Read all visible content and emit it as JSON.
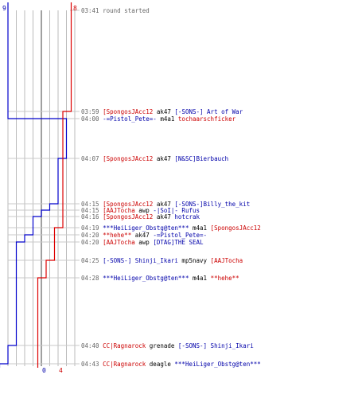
{
  "colors": {
    "blue_team": "#0000cc",
    "red_team": "#dd0000",
    "timestamp": "#666666",
    "grid": "#bbbbbb",
    "center": "#777777"
  },
  "counts": {
    "blue_start": "9",
    "red_start": "8",
    "blue_end": "0",
    "red_end": "4"
  },
  "events": [
    {
      "time": "03:41",
      "parts": [
        {
          "text": "round started",
          "team": "gray"
        }
      ]
    },
    {
      "time": "03:59",
      "parts": [
        {
          "text": "[SpongosJAcc12",
          "team": "red"
        },
        {
          "text": " ak47 ",
          "team": "plain"
        },
        {
          "text": "[-SONS-] Art of War",
          "team": "blue"
        }
      ]
    },
    {
      "time": "04:00",
      "parts": [
        {
          "text": "-=Pistol_Pete=-",
          "team": "blue"
        },
        {
          "text": " m4a1 ",
          "team": "plain"
        },
        {
          "text": "tochaarschficker",
          "team": "red"
        }
      ]
    },
    {
      "time": "04:07",
      "parts": [
        {
          "text": "[SpongosJAcc12",
          "team": "red"
        },
        {
          "text": " ak47 ",
          "team": "plain"
        },
        {
          "text": "[N&SC]Bierbauch",
          "team": "blue"
        }
      ]
    },
    {
      "time": "04:15",
      "parts": [
        {
          "text": "[SpongosJAcc12",
          "team": "red"
        },
        {
          "text": " ak47 ",
          "team": "plain"
        },
        {
          "text": "[-SONS-]Billy_the_kit",
          "team": "blue"
        }
      ]
    },
    {
      "time": "04:15",
      "parts": [
        {
          "text": "[AAJTocha",
          "team": "red"
        },
        {
          "text": " awp ",
          "team": "plain"
        },
        {
          "text": "-|SoI|- Rufus",
          "team": "blue"
        }
      ]
    },
    {
      "time": "04:16",
      "parts": [
        {
          "text": "[SpongosJAcc12",
          "team": "red"
        },
        {
          "text": " ak47 ",
          "team": "plain"
        },
        {
          "text": "hotcrak",
          "team": "blue"
        }
      ]
    },
    {
      "time": "04:19",
      "parts": [
        {
          "text": "***HeiLiger_Obstg@ten***",
          "team": "blue"
        },
        {
          "text": " m4a1 ",
          "team": "plain"
        },
        {
          "text": "[SpongosJAcc12",
          "team": "red"
        }
      ]
    },
    {
      "time": "04:20",
      "parts": [
        {
          "text": "**hehe**",
          "team": "red"
        },
        {
          "text": " ak47 ",
          "team": "plain"
        },
        {
          "text": "-=Pistol_Pete=-",
          "team": "blue"
        }
      ]
    },
    {
      "time": "04:20",
      "parts": [
        {
          "text": "[AAJTocha",
          "team": "red"
        },
        {
          "text": " awp ",
          "team": "plain"
        },
        {
          "text": "[DTAG]THE SEAL",
          "team": "blue"
        }
      ]
    },
    {
      "time": "04:25",
      "parts": [
        {
          "text": "[-SONS-] Shinji_Ikari",
          "team": "blue"
        },
        {
          "text": " mp5navy ",
          "team": "plain"
        },
        {
          "text": "[AAJTocha",
          "team": "red"
        }
      ]
    },
    {
      "time": "04:28",
      "parts": [
        {
          "text": "***HeiLiger_Obstg@ten***",
          "team": "blue"
        },
        {
          "text": " m4a1 ",
          "team": "plain"
        },
        {
          "text": "**hehe**",
          "team": "red"
        }
      ]
    },
    {
      "time": "04:40",
      "parts": [
        {
          "text": "CC|Ragnarock",
          "team": "red"
        },
        {
          "text": " grenade ",
          "team": "plain"
        },
        {
          "text": "[-SONS-] Shinji_Ikari",
          "team": "blue"
        }
      ]
    },
    {
      "time": "04:43",
      "parts": [
        {
          "text": "CC|Ragnarock",
          "team": "red"
        },
        {
          "text": " deagle ",
          "team": "plain"
        },
        {
          "text": "***HeiLiger_Obstg@ten***",
          "team": "blue"
        }
      ]
    }
  ]
}
